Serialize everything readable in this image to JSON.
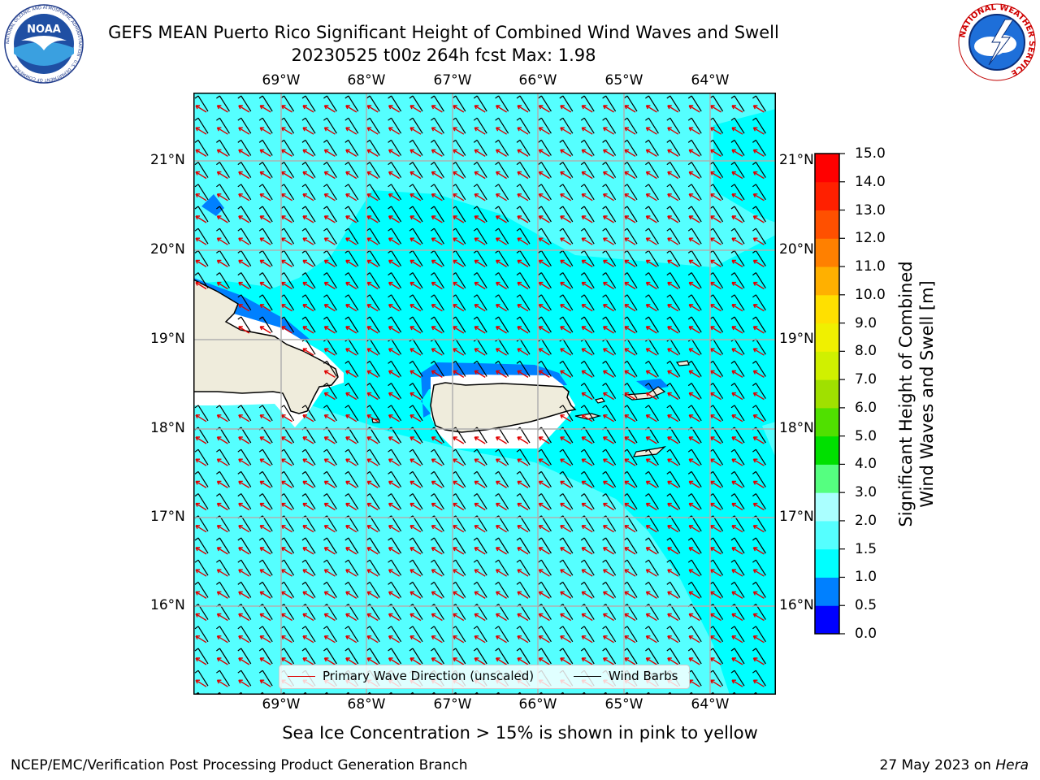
{
  "header": {
    "title": "GEFS MEAN Puerto Rico Significant Height of Combined Wind Waves and Swell",
    "subtitle": "20230525 t00z 264h fcst   Max: 1.98"
  },
  "logos": {
    "noaa": {
      "text": "NOAA",
      "ring_text": "NATIONAL OCEANIC AND ATMOSPHERIC ADMINISTRATION · U.S. DEPARTMENT OF COMMERCE"
    },
    "nws": {
      "ring_text": "NATIONAL WEATHER SERVICE"
    }
  },
  "map": {
    "lon_labels": [
      "69°W",
      "68°W",
      "67°W",
      "66°W",
      "65°W",
      "64°W"
    ],
    "lat_labels": [
      "21°N",
      "20°N",
      "19°N",
      "18°N",
      "17°N",
      "16°N"
    ],
    "colors": {
      "sea_low": "#00ffff",
      "sea_mid": "#55ffff",
      "band_blue": "#0080ff",
      "land": "#efecdc",
      "grid": "#b0b0b0",
      "wave_arrow": "#e00000",
      "wind_barb": "#000000"
    }
  },
  "legend": {
    "wave_direction": "Primary Wave Direction (unscaled)",
    "wind_barbs": "Wind Barbs"
  },
  "colorbar": {
    "label_line1": "Significant Height of Combined",
    "label_line2": "Wind Waves and Swell [m]",
    "ticks": [
      "0.0",
      "0.5",
      "1.0",
      "1.5",
      "2.0",
      "3.0",
      "4.0",
      "5.0",
      "6.0",
      "7.0",
      "8.0",
      "9.0",
      "10.0",
      "11.0",
      "12.0",
      "13.0",
      "14.0",
      "15.0"
    ],
    "colors": [
      "#0000ff",
      "#0080ff",
      "#00ffff",
      "#55ffff",
      "#aaffff",
      "#55ff80",
      "#00e000",
      "#50e000",
      "#a0e000",
      "#d0f000",
      "#f0f000",
      "#ffe000",
      "#ffb000",
      "#ff8000",
      "#ff5000",
      "#ff2000",
      "#ff0000"
    ]
  },
  "caption": "Sea Ice Concentration > 15% is shown in pink to yellow",
  "footer": {
    "left": "NCEP/EMC/Verification Post Processing Product Generation Branch",
    "date": "27 May 2023 on ",
    "host": "Hera"
  }
}
